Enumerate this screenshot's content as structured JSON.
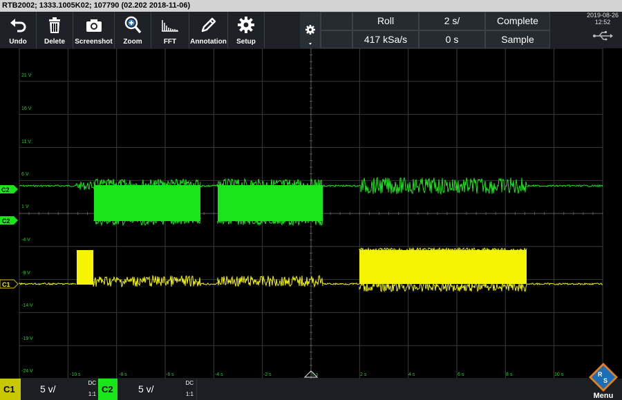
{
  "title_bar": "RTB2002; 1333.1005K02; 107790 (02.202 2018-11-06)",
  "toolbar": {
    "undo": "Undo",
    "delete": "Delete",
    "screenshot": "Screenshot",
    "zoom": "Zoom",
    "fft": "FFT",
    "annotation": "Annotation",
    "setup": "Setup"
  },
  "status": {
    "mode": "Roll",
    "timebase": "2 s/",
    "acq_state": "Complete",
    "sample_rate": "417 kSa/s",
    "trigger_pos": "0 s",
    "acq_mode": "Sample"
  },
  "datetime": {
    "date": "2019-08-26",
    "time": "12:52"
  },
  "y_ticks": [
    "21 V",
    "16 V",
    "11 V",
    "6 V",
    "1 V",
    "-4 V",
    "-9 V",
    "-14 V",
    "-19 V",
    "-24 V"
  ],
  "x_ticks": [
    "-10 s",
    "-8 s",
    "-6 s",
    "-4 s",
    "-2 s",
    "0 s",
    "2 s",
    "4 s",
    "6 s",
    "8 s",
    "10 s"
  ],
  "markers": {
    "c2_top": "C2",
    "c2_ref": "C2",
    "c1": "C1"
  },
  "channels": [
    {
      "name": "C1",
      "scale": "5 v/",
      "coupling": "DC",
      "ratio": "1:1",
      "color": "#f5f500"
    },
    {
      "name": "C2",
      "scale": "5 v/",
      "coupling": "DC",
      "ratio": "1:1",
      "color": "#19e619"
    }
  ],
  "menu_label": "Menu",
  "colors": {
    "grid": "#3b3b3b",
    "c1": "#f5f500",
    "c2": "#19e619",
    "c2_ref": "#1fd21f",
    "c1_ref": "#b3a200"
  }
}
